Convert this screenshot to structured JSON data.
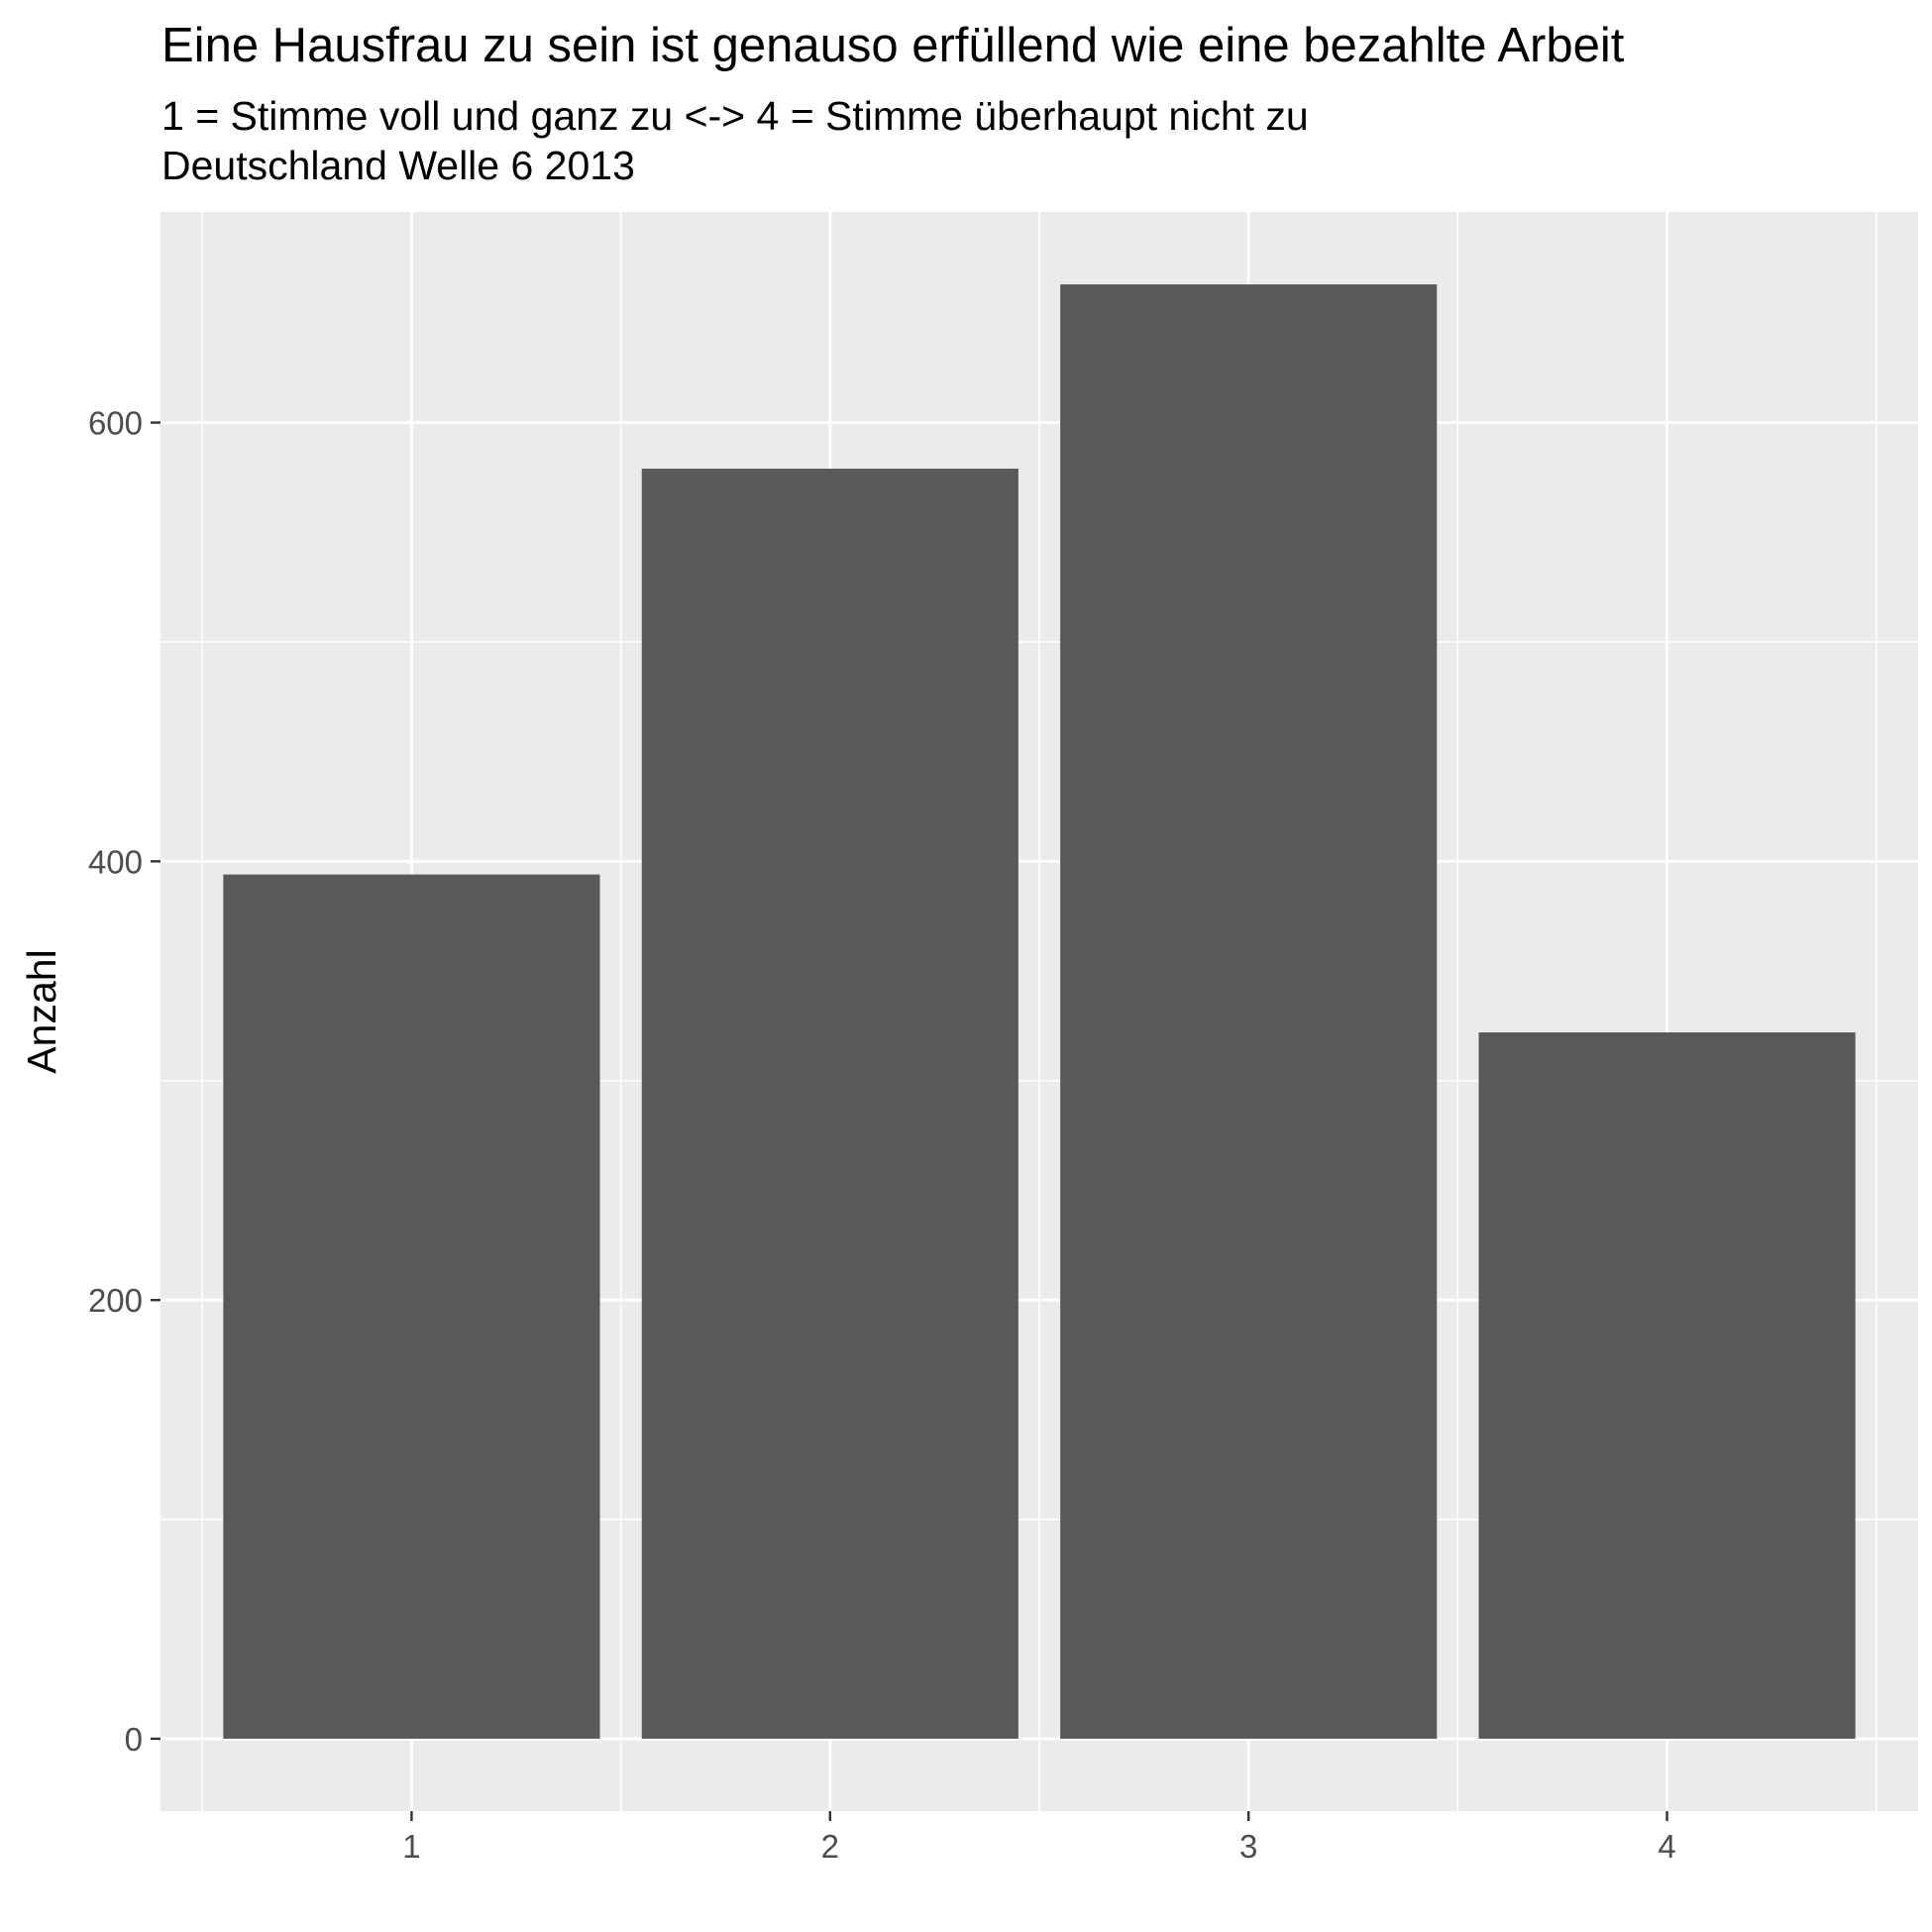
{
  "chart_data": {
    "type": "bar",
    "title": "Eine Hausfrau zu sein ist genauso erfüllend wie eine bezahlte Arbeit",
    "subtitle_lines": [
      "1 = Stimme voll und ganz zu <-> 4 = Stimme überhaupt nicht zu",
      "Deutschland Welle 6 2013"
    ],
    "xlabel": "",
    "ylabel": "Anzahl",
    "categories": [
      "1",
      "2",
      "3",
      "4"
    ],
    "values": [
      394,
      579,
      663,
      322
    ],
    "ylim": [
      -33,
      696
    ],
    "y_ticks": [
      0,
      200,
      400,
      600
    ],
    "y_tick_labels": [
      "0",
      "200",
      "400",
      "600"
    ],
    "grid": true,
    "legend": "none",
    "colors": {
      "bar": "#595959",
      "panel_background": "#ebebeb",
      "grid_line": "#ffffff",
      "tick_mark": "#333333",
      "tick_label": "#4d4d4d",
      "text": "#000000"
    }
  }
}
